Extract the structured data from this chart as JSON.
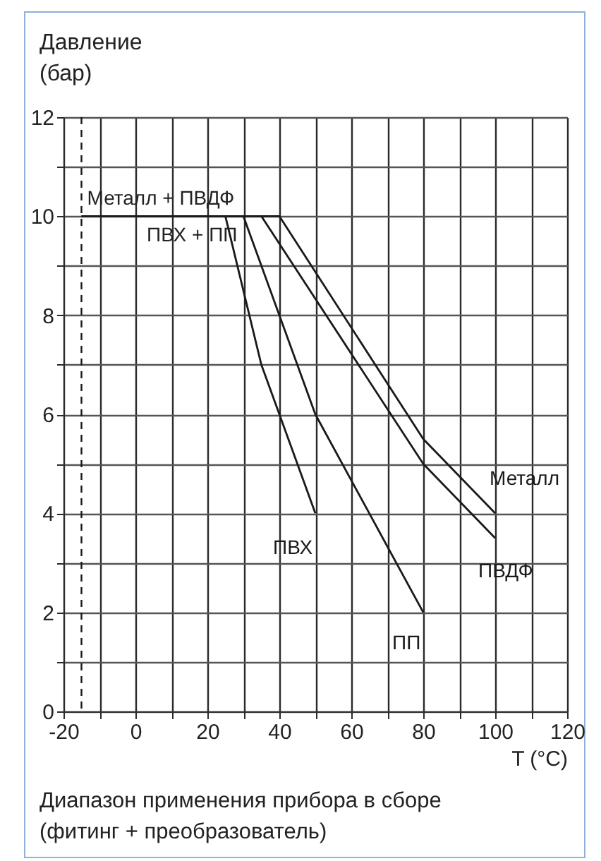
{
  "chart_data": {
    "type": "line",
    "ylabel": "Давление (бар)",
    "xlabel": "T (°C)",
    "xlim": [
      -20,
      120
    ],
    "ylim": [
      0,
      12
    ],
    "xticks": [
      -20,
      {
        "value": -10,
        "label": null
      },
      0,
      {
        "value": 10,
        "label": null
      },
      20,
      {
        "value": 30,
        "label": null
      },
      40,
      {
        "value": 50,
        "label": null
      },
      60,
      {
        "value": 70,
        "label": null
      },
      80,
      {
        "value": 90,
        "label": null
      },
      100,
      {
        "value": 110,
        "label": null
      },
      120
    ],
    "yticks": [
      0,
      {
        "value": 1,
        "label": null
      },
      2,
      {
        "value": 3,
        "label": null
      },
      4,
      {
        "value": 5,
        "label": null
      },
      6,
      {
        "value": 7,
        "label": null
      },
      8,
      {
        "value": 9,
        "label": null
      },
      10,
      {
        "value": 11,
        "label": null
      },
      12
    ],
    "grid": true,
    "line_style": "solid",
    "series": [
      {
        "name": "Металл",
        "color": "#1a1a1a",
        "x": [
          -15,
          40,
          80,
          100
        ],
        "values": [
          10,
          10,
          5.5,
          4
        ]
      },
      {
        "name": "ПВДФ",
        "color": "#1a1a1a",
        "x": [
          -15,
          35,
          80,
          100
        ],
        "values": [
          10,
          10,
          5,
          3.5
        ]
      },
      {
        "name": "ПП",
        "color": "#1a1a1a",
        "x": [
          0,
          30,
          50,
          80
        ],
        "values": [
          10,
          10,
          6,
          2
        ]
      },
      {
        "name": "ПВХ",
        "color": "#1a1a1a",
        "x": [
          0,
          25,
          35,
          50
        ],
        "values": [
          10,
          10,
          7,
          4
        ]
      }
    ],
    "ref_lines": [
      {
        "axis": "x",
        "value": -15,
        "label": null,
        "color": "#1a1a1a",
        "line_style": "dashed"
      }
    ],
    "annotations": [
      {
        "text": "Металл + ПВДФ",
        "x": -15,
        "y": 10
      },
      {
        "text": "ПВХ + ПП",
        "x": 0,
        "y": 10
      },
      "Диапазон применения прибора в сборе (фитинг + преобразователь)"
    ]
  }
}
